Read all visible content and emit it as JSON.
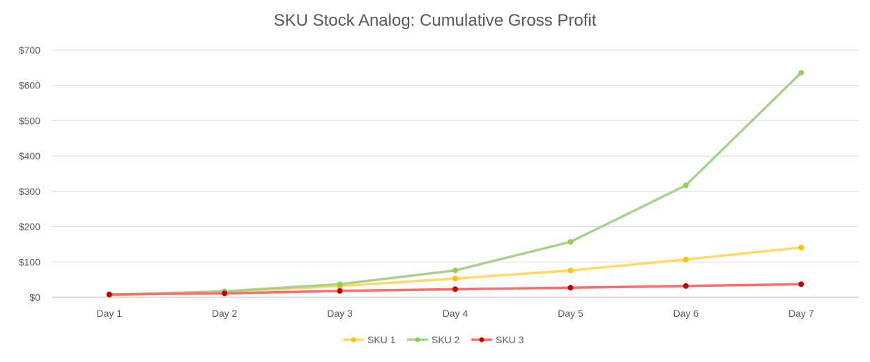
{
  "chart_data": {
    "type": "line",
    "title": "SKU Stock Analog: Cumulative Gross Profit",
    "categories": [
      "Day 1",
      "Day 2",
      "Day 3",
      "Day 4",
      "Day 5",
      "Day 6",
      "Day 7"
    ],
    "ylim": [
      0,
      700
    ],
    "yticks": [
      0,
      100,
      200,
      300,
      400,
      500,
      600,
      700
    ],
    "ytick_labels": [
      "$0",
      "$100",
      "$200",
      "$300",
      "$400",
      "$500",
      "$600",
      "$700"
    ],
    "grid": "horizontal",
    "legend_position": "bottom",
    "series": [
      {
        "name": "SKU 1",
        "color": "#FFD966",
        "marker_color": "#FFC000",
        "values": [
          6,
          15,
          32,
          53,
          76,
          107,
          141
        ]
      },
      {
        "name": "SKU 2",
        "color": "#A9D18E",
        "marker_color": "#92D050",
        "values": [
          7,
          17,
          37,
          76,
          157,
          317,
          636
        ]
      },
      {
        "name": "SKU 3",
        "color": "#FF6B6B",
        "marker_color": "#C00000",
        "values": [
          8,
          11,
          18,
          23,
          27,
          32,
          37
        ]
      }
    ]
  }
}
